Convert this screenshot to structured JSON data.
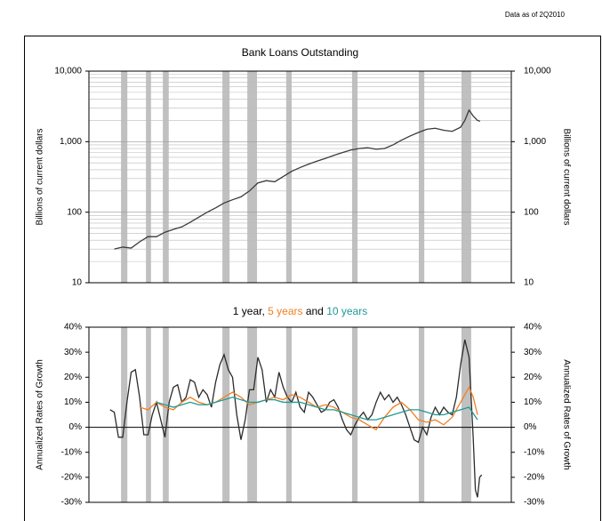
{
  "data_note": "Data as of 2Q2010",
  "chart_data": [
    {
      "type": "line",
      "title": "Bank Loans Outstanding",
      "y_label": "Billions of current dollars",
      "y2_label": "Billions of current dollars",
      "log_scale": true,
      "grid": true,
      "minor_grid": true,
      "color": "#3a3a3a",
      "xlim": [
        0,
        100
      ],
      "ylim": [
        10,
        10000
      ],
      "yticks": [
        10,
        100,
        {
          "value": 1000,
          "label": "1,000"
        },
        {
          "value": 10000,
          "label": "10,000"
        }
      ],
      "shaded_periods": [
        [
          7.6,
          9.1
        ],
        [
          13.5,
          14.7
        ],
        [
          17.5,
          18.9
        ],
        [
          31.6,
          33.3
        ],
        [
          37.5,
          39.8
        ],
        [
          46.7,
          48.0
        ],
        [
          62.3,
          63.6
        ],
        [
          78.1,
          79.4
        ],
        [
          88.2,
          90.5
        ]
      ],
      "x": [
        6,
        8,
        10,
        12,
        14,
        16,
        18,
        20,
        22,
        24,
        26,
        28,
        30,
        32,
        34,
        36,
        38,
        40,
        42,
        44,
        46,
        48,
        50,
        52,
        54,
        56,
        58,
        60,
        62,
        64,
        66,
        68,
        70,
        72,
        74,
        76,
        78,
        80,
        82,
        84,
        86,
        88,
        89,
        90,
        91,
        92,
        92.6
      ],
      "values": [
        30,
        32,
        31,
        38,
        45,
        45,
        52,
        57,
        62,
        72,
        85,
        100,
        115,
        135,
        150,
        165,
        200,
        260,
        280,
        270,
        320,
        380,
        430,
        480,
        530,
        580,
        640,
        700,
        760,
        800,
        820,
        780,
        800,
        900,
        1050,
        1200,
        1350,
        1500,
        1550,
        1450,
        1400,
        1600,
        2000,
        2800,
        2300,
        2000,
        1950
      ]
    },
    {
      "type": "line",
      "title_separators": [
        ", ",
        " and "
      ],
      "y_label": "Annualized Rates of Growth",
      "y2_label": "Annualized Rates of Growth",
      "log_scale": false,
      "grid": false,
      "zero_line": true,
      "xlim": [
        0,
        100
      ],
      "ylim": [
        -30,
        40
      ],
      "yticks": [
        {
          "value": 40,
          "label": "40%"
        },
        {
          "value": 30,
          "label": "30%"
        },
        {
          "value": 20,
          "label": "20%"
        },
        {
          "value": 10,
          "label": "10%"
        },
        {
          "value": 0,
          "label": "0%"
        },
        {
          "value": -10,
          "label": "-10%"
        },
        {
          "value": -20,
          "label": "-20%"
        },
        {
          "value": -30,
          "label": "-30%"
        }
      ],
      "shaded_periods": [
        [
          7.6,
          9.1
        ],
        [
          13.5,
          14.7
        ],
        [
          17.5,
          18.9
        ],
        [
          31.6,
          33.3
        ],
        [
          37.5,
          39.8
        ],
        [
          46.7,
          48.0
        ],
        [
          62.3,
          63.6
        ],
        [
          78.1,
          79.4
        ],
        [
          88.2,
          90.5
        ]
      ],
      "series": [
        {
          "name": "1 year",
          "color": "#2b2b2b",
          "x": [
            5,
            6,
            7,
            8,
            9,
            10,
            11,
            12,
            13,
            14,
            15,
            16,
            17,
            18,
            19,
            20,
            21,
            22,
            23,
            24,
            25,
            26,
            27,
            28,
            29,
            30,
            31,
            32,
            33,
            34,
            35,
            36,
            37,
            38,
            39,
            40,
            41,
            42,
            43,
            44,
            45,
            46,
            47,
            48,
            49,
            50,
            51,
            52,
            53,
            54,
            55,
            56,
            57,
            58,
            59,
            60,
            61,
            62,
            63,
            64,
            65,
            66,
            67,
            68,
            69,
            70,
            71,
            72,
            73,
            74,
            75,
            76,
            77,
            78,
            79,
            80,
            81,
            82,
            83,
            84,
            85,
            86,
            87,
            88,
            89,
            90,
            91,
            91.5,
            92,
            92.5,
            93
          ],
          "values": [
            7,
            6,
            -4,
            -4,
            10,
            22,
            23,
            12,
            -3,
            -3,
            5,
            10,
            3,
            -4,
            10,
            16,
            17,
            10,
            12,
            19,
            18,
            12,
            15,
            13,
            8,
            18,
            25,
            29,
            23,
            20,
            5,
            -5,
            3,
            15,
            15,
            28,
            23,
            10,
            15,
            12,
            22,
            16,
            12,
            10,
            14,
            8,
            6,
            14,
            12,
            9,
            6,
            7,
            10,
            11,
            8,
            3,
            -1,
            -3,
            1,
            4,
            6,
            3,
            5,
            10,
            14,
            11,
            13,
            10,
            12,
            9,
            5,
            0,
            -5,
            -6,
            0,
            -3,
            4,
            8,
            5,
            8,
            6,
            5,
            12,
            25,
            35,
            28,
            -5,
            -25,
            -28,
            -20,
            -19
          ]
        },
        {
          "name": "5 years",
          "color": "#f07f22",
          "x": [
            12,
            14,
            16,
            18,
            20,
            22,
            24,
            26,
            28,
            30,
            32,
            34,
            36,
            38,
            40,
            42,
            44,
            46,
            48,
            50,
            52,
            54,
            56,
            58,
            60,
            62,
            64,
            66,
            68,
            70,
            72,
            74,
            76,
            78,
            80,
            82,
            84,
            86,
            88,
            90,
            91,
            92
          ],
          "values": [
            8,
            7,
            10,
            8,
            7,
            10,
            12,
            10,
            9,
            10,
            12,
            14,
            12,
            9,
            10,
            11,
            12,
            11,
            13,
            12,
            10,
            8,
            9,
            8,
            6,
            4,
            3,
            1,
            -1,
            4,
            8,
            10,
            7,
            3,
            2,
            3,
            1,
            4,
            10,
            16,
            12,
            5
          ]
        },
        {
          "name": "10 years",
          "color": "#1f9a96",
          "x": [
            16,
            18,
            20,
            22,
            24,
            26,
            28,
            30,
            32,
            34,
            36,
            38,
            40,
            42,
            44,
            46,
            48,
            50,
            52,
            54,
            56,
            58,
            60,
            62,
            64,
            66,
            68,
            70,
            72,
            74,
            76,
            78,
            80,
            82,
            84,
            86,
            88,
            90,
            92
          ],
          "values": [
            10,
            9,
            8,
            9,
            10,
            9,
            9,
            10,
            11,
            12,
            11,
            10,
            10,
            11,
            11,
            10,
            10,
            10,
            9,
            8,
            7,
            7,
            6,
            5,
            4,
            3,
            3,
            4,
            5,
            6,
            7,
            7,
            6,
            5,
            5,
            6,
            7,
            8,
            3
          ]
        }
      ]
    }
  ]
}
